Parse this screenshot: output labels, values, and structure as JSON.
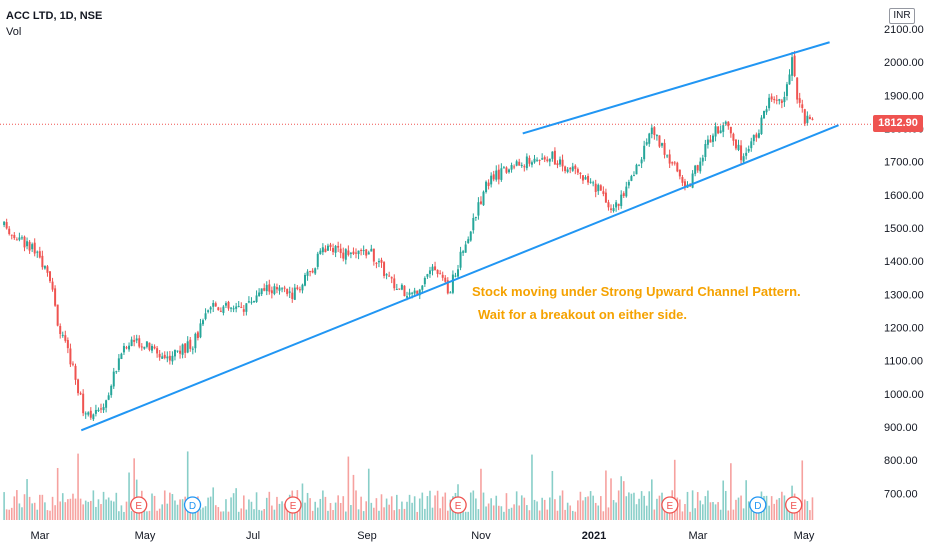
{
  "header": {
    "symbol": "ACC LTD, 1D, NSE",
    "volume_label": "Vol"
  },
  "currency": "INR",
  "last_price": "1812.90",
  "annotation": {
    "line1": "Stock moving under Strong Upward Channel Pattern.",
    "line2": "Wait for a breakout on either side."
  },
  "colors": {
    "up": "#26a69a",
    "down": "#ef5350",
    "trendline": "#2196f3",
    "annotation": "#f5a200"
  },
  "chart_data": {
    "type": "candlestick",
    "title": "ACC LTD, 1D, NSE",
    "y_ticks": [
      2100,
      2000,
      1900,
      1800,
      1700,
      1600,
      1500,
      1400,
      1300,
      1200,
      1100,
      1000,
      900,
      800,
      700
    ],
    "y_tick_labels": [
      "2100.00",
      "2000.00",
      "1900.00",
      "1800.00",
      "1700.00",
      "1600.00",
      "1500.00",
      "1400.00",
      "1300.00",
      "1200.00",
      "1100.00",
      "1000.00",
      "900.00",
      "800.00",
      "700.00"
    ],
    "ylim": [
      650,
      2150
    ],
    "x_labels": [
      "Mar",
      "May",
      "Jul",
      "Sep",
      "Nov",
      "2021",
      "Mar",
      "May"
    ],
    "bold_x_label": "2021",
    "price_anchors": [
      {
        "x": "2020-02-10",
        "y": 1505
      },
      {
        "x": "2020-02-25",
        "y": 1440
      },
      {
        "x": "2020-03-05",
        "y": 1380
      },
      {
        "x": "2020-03-12",
        "y": 1190
      },
      {
        "x": "2020-03-19",
        "y": 1090
      },
      {
        "x": "2020-03-25",
        "y": 950
      },
      {
        "x": "2020-04-02",
        "y": 940
      },
      {
        "x": "2020-04-08",
        "y": 1000
      },
      {
        "x": "2020-04-15",
        "y": 1130
      },
      {
        "x": "2020-04-25",
        "y": 1160
      },
      {
        "x": "2020-05-10",
        "y": 1110
      },
      {
        "x": "2020-05-25",
        "y": 1150
      },
      {
        "x": "2020-06-05",
        "y": 1270
      },
      {
        "x": "2020-06-20",
        "y": 1250
      },
      {
        "x": "2020-07-05",
        "y": 1320
      },
      {
        "x": "2020-07-20",
        "y": 1300
      },
      {
        "x": "2020-08-01",
        "y": 1380
      },
      {
        "x": "2020-08-05",
        "y": 1440
      },
      {
        "x": "2020-08-20",
        "y": 1420
      },
      {
        "x": "2020-09-01",
        "y": 1430
      },
      {
        "x": "2020-09-15",
        "y": 1320
      },
      {
        "x": "2020-09-25",
        "y": 1300
      },
      {
        "x": "2020-10-05",
        "y": 1380
      },
      {
        "x": "2020-10-15",
        "y": 1310
      },
      {
        "x": "2020-10-25",
        "y": 1470
      },
      {
        "x": "2020-11-05",
        "y": 1640
      },
      {
        "x": "2020-11-20",
        "y": 1690
      },
      {
        "x": "2020-12-10",
        "y": 1720
      },
      {
        "x": "2020-12-20",
        "y": 1680
      },
      {
        "x": "2021-01-05",
        "y": 1620
      },
      {
        "x": "2021-01-15",
        "y": 1560
      },
      {
        "x": "2021-01-25",
        "y": 1650
      },
      {
        "x": "2021-02-05",
        "y": 1800
      },
      {
        "x": "2021-02-15",
        "y": 1700
      },
      {
        "x": "2021-02-25",
        "y": 1620
      },
      {
        "x": "2021-03-08",
        "y": 1760
      },
      {
        "x": "2021-03-18",
        "y": 1830
      },
      {
        "x": "2021-03-28",
        "y": 1700
      },
      {
        "x": "2021-04-05",
        "y": 1790
      },
      {
        "x": "2021-04-12",
        "y": 1900
      },
      {
        "x": "2021-04-20",
        "y": 1880
      },
      {
        "x": "2021-04-24",
        "y": 2020
      },
      {
        "x": "2021-04-27",
        "y": 1880
      },
      {
        "x": "2021-05-01",
        "y": 1830
      },
      {
        "x": "2021-05-06",
        "y": 1812.9
      }
    ],
    "trendlines": [
      {
        "name": "lower-channel",
        "start": {
          "x": "2020-03-24",
          "y": 890
        },
        "end": {
          "x": "2021-05-20",
          "y": 1810
        }
      },
      {
        "name": "upper-channel",
        "start": {
          "x": "2020-11-25",
          "y": 1785
        },
        "end": {
          "x": "2021-05-15",
          "y": 2060
        }
      }
    ],
    "current_price_line": 1812.9,
    "events": [
      {
        "type": "E",
        "x": "2020-04-25"
      },
      {
        "type": "D",
        "x": "2020-05-25"
      },
      {
        "type": "E",
        "x": "2020-07-20"
      },
      {
        "type": "E",
        "x": "2020-10-20"
      },
      {
        "type": "E",
        "x": "2021-02-15"
      },
      {
        "type": "D",
        "x": "2021-04-05"
      },
      {
        "type": "E",
        "x": "2021-04-25"
      }
    ],
    "grid": false,
    "legend": "none"
  }
}
